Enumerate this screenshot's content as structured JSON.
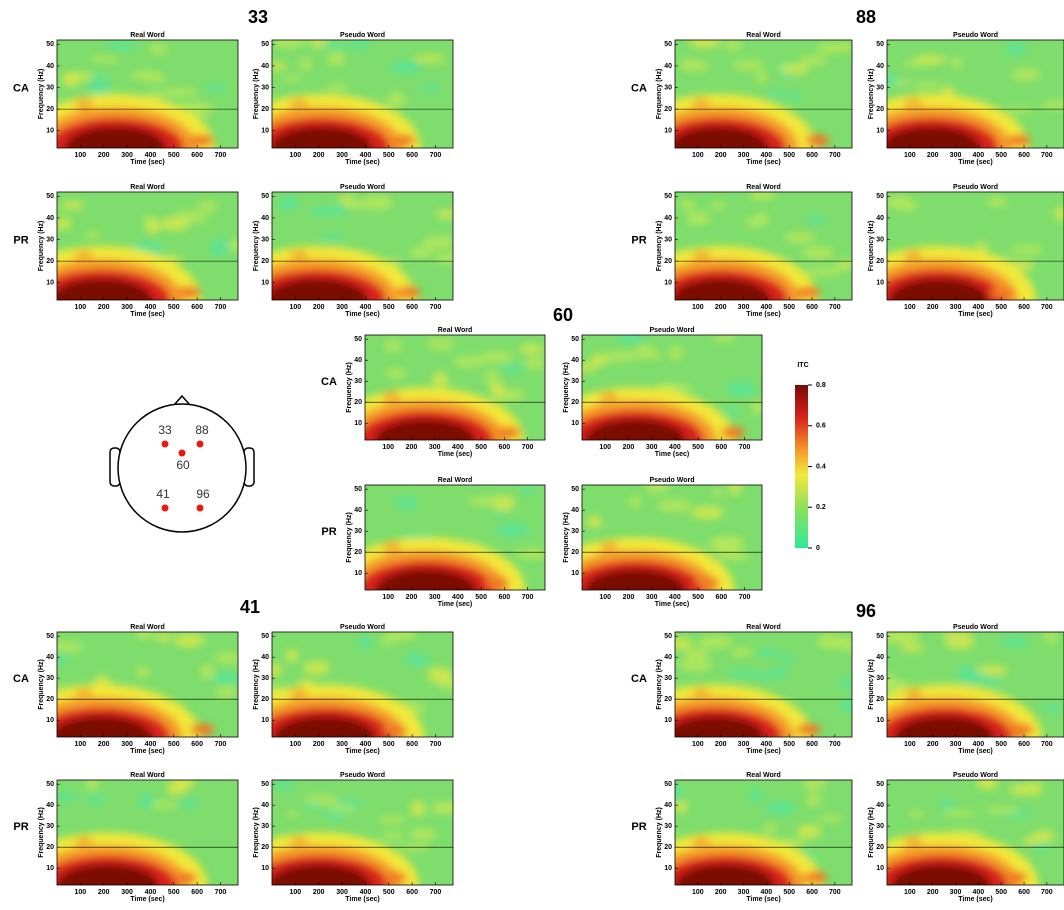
{
  "figure": {
    "electrodes": [
      "33",
      "88",
      "60",
      "41",
      "96"
    ],
    "rows": [
      "CA",
      "PR"
    ],
    "panel_titles": [
      "Real Word",
      "Pseudo Word"
    ],
    "axes": {
      "xlabel": "Time (sec)",
      "xlim": [
        0,
        775
      ],
      "xticks": [
        100,
        200,
        300,
        400,
        500,
        600,
        700
      ],
      "ylabel": "Frequency (Hz)",
      "ylim": [
        2,
        52
      ],
      "yticks": [
        10,
        20,
        30,
        40,
        50
      ]
    },
    "colorbar": {
      "label": "ITC",
      "lim": [
        0,
        0.8
      ],
      "ticks": [
        0,
        0.2,
        0.4,
        0.6,
        0.8
      ]
    }
  }
}
